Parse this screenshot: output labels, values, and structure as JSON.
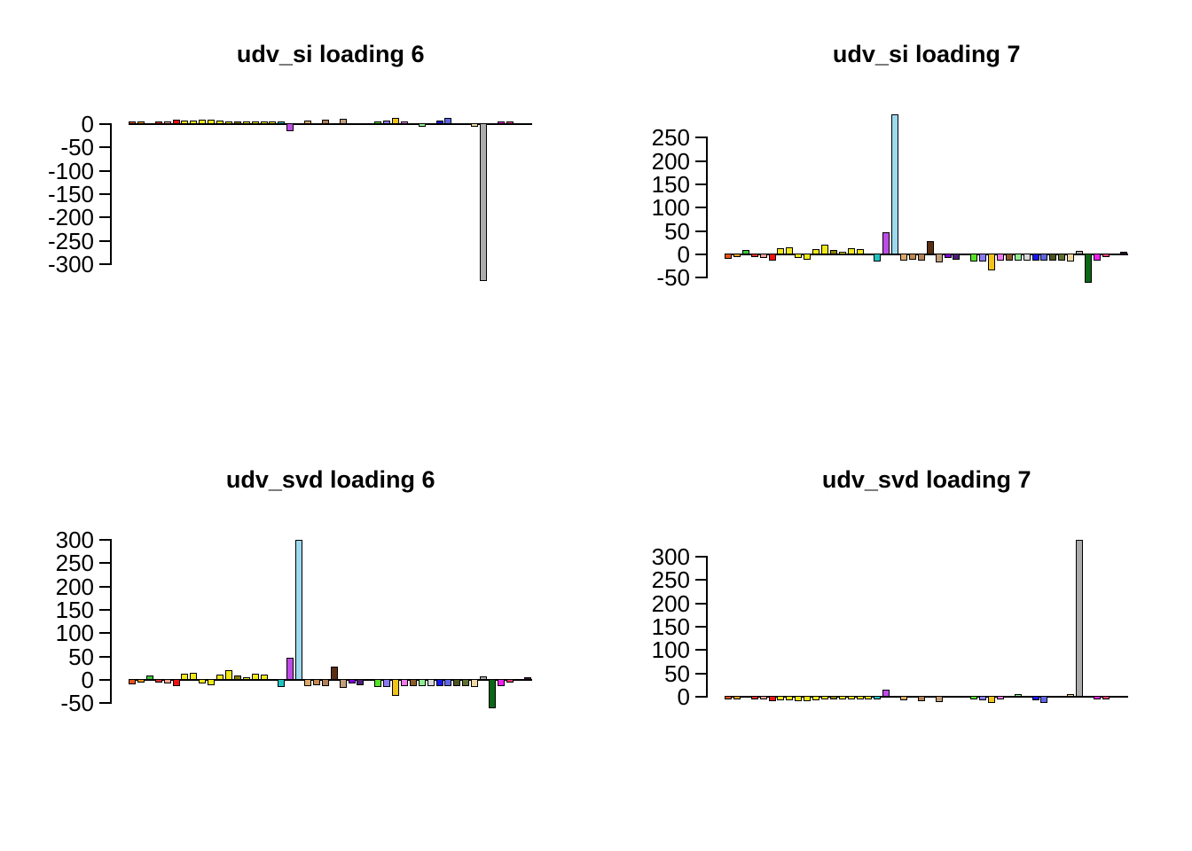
{
  "figure": {
    "background": "#ffffff",
    "text_color": "#000000",
    "n_bars": 46,
    "bar_colors": [
      "#E8521A",
      "#E89A20",
      "#3EC63E",
      "#E03030",
      "#F2A091",
      "#EE1111",
      "#F0E818",
      "#F0E818",
      "#F0E818",
      "#F0E818",
      "#F0E818",
      "#F0E818",
      "#8B8000",
      "#F0E818",
      "#F0E818",
      "#F0E818",
      "#F0E818",
      "#20C3C0",
      "#BE4BE8",
      "#9FD9EE",
      "#DCA96B",
      "#C4874E",
      "#B28159",
      "#5C2E11",
      "#C19E7C",
      "#7F00DC",
      "#4B1E78",
      "#C8C8C8",
      "#54E426",
      "#8A7AF2",
      "#F0C419",
      "#EE7AEC",
      "#8A5C2A",
      "#8FEE8F",
      "#D9D9D9",
      "#1515EE",
      "#5E66E6",
      "#4A5420",
      "#5F7030",
      "#EFD9A4",
      "#ABABAB",
      "#0B6616",
      "#EE22EE",
      "#EE3E79",
      "#C8C8C8",
      "#3C0D42"
    ]
  },
  "chart_data": [
    {
      "type": "bar",
      "title": "udv_si loading 6",
      "xlabel": "",
      "ylabel": "",
      "grid": false,
      "legend": "none",
      "yticks": [
        0,
        -50,
        -100,
        -150,
        -200,
        -250,
        -300
      ],
      "ylim": [
        -345,
        15
      ],
      "values": [
        6,
        3,
        0,
        6,
        5,
        10,
        7,
        8,
        9,
        9,
        7,
        6,
        4,
        6,
        5,
        4,
        4,
        4,
        -15,
        0,
        8,
        0,
        10,
        0,
        12,
        0,
        0,
        0,
        2,
        8,
        13,
        4,
        0,
        -3,
        0,
        8,
        13,
        0,
        0,
        -2,
        -335,
        0,
        4,
        4,
        0,
        0
      ]
    },
    {
      "type": "bar",
      "title": "udv_si loading 7",
      "xlabel": "",
      "ylabel": "",
      "grid": false,
      "legend": "none",
      "yticks": [
        250,
        200,
        150,
        100,
        50,
        0,
        -50
      ],
      "ylim": [
        -65,
        305
      ],
      "values": [
        -10,
        -4,
        10,
        -2,
        -8,
        -13,
        14,
        16,
        -7,
        -12,
        11,
        20,
        10,
        6,
        14,
        11,
        0,
        -15,
        47,
        300,
        -14,
        -12,
        -14,
        28,
        -18,
        -8,
        -11,
        0,
        -15,
        -15,
        -35,
        -13,
        -13,
        -13,
        -13,
        -13,
        -13,
        -13,
        -13,
        -16,
        8,
        -60,
        -13,
        -6,
        0,
        5
      ]
    },
    {
      "type": "bar",
      "title": "udv_svd loading 6",
      "xlabel": "",
      "ylabel": "",
      "grid": false,
      "legend": "none",
      "yticks": [
        300,
        250,
        200,
        150,
        100,
        50,
        0,
        -50
      ],
      "ylim": [
        -65,
        305
      ],
      "values": [
        -10,
        -4,
        10,
        -2,
        -8,
        -13,
        14,
        16,
        -7,
        -12,
        11,
        20,
        10,
        6,
        14,
        11,
        0,
        -15,
        47,
        300,
        -14,
        -12,
        -14,
        28,
        -18,
        -8,
        -11,
        0,
        -15,
        -15,
        -35,
        -13,
        -13,
        -13,
        -13,
        -13,
        -13,
        -13,
        -13,
        -16,
        8,
        -60,
        -13,
        -6,
        0,
        5
      ]
    },
    {
      "type": "bar",
      "title": "udv_svd loading 7",
      "xlabel": "",
      "ylabel": "",
      "grid": false,
      "legend": "none",
      "yticks": [
        300,
        250,
        200,
        150,
        100,
        50,
        0
      ],
      "ylim": [
        -15,
        345
      ],
      "values": [
        -6,
        -3,
        0,
        -6,
        -5,
        -10,
        -7,
        -8,
        -9,
        -9,
        -7,
        -6,
        -4,
        -6,
        -5,
        -4,
        -4,
        -4,
        15,
        0,
        -8,
        0,
        -10,
        0,
        -12,
        0,
        0,
        0,
        -2,
        -8,
        -13,
        -4,
        0,
        3,
        0,
        -8,
        -13,
        0,
        0,
        2,
        335,
        0,
        -4,
        -4,
        0,
        0
      ]
    }
  ]
}
